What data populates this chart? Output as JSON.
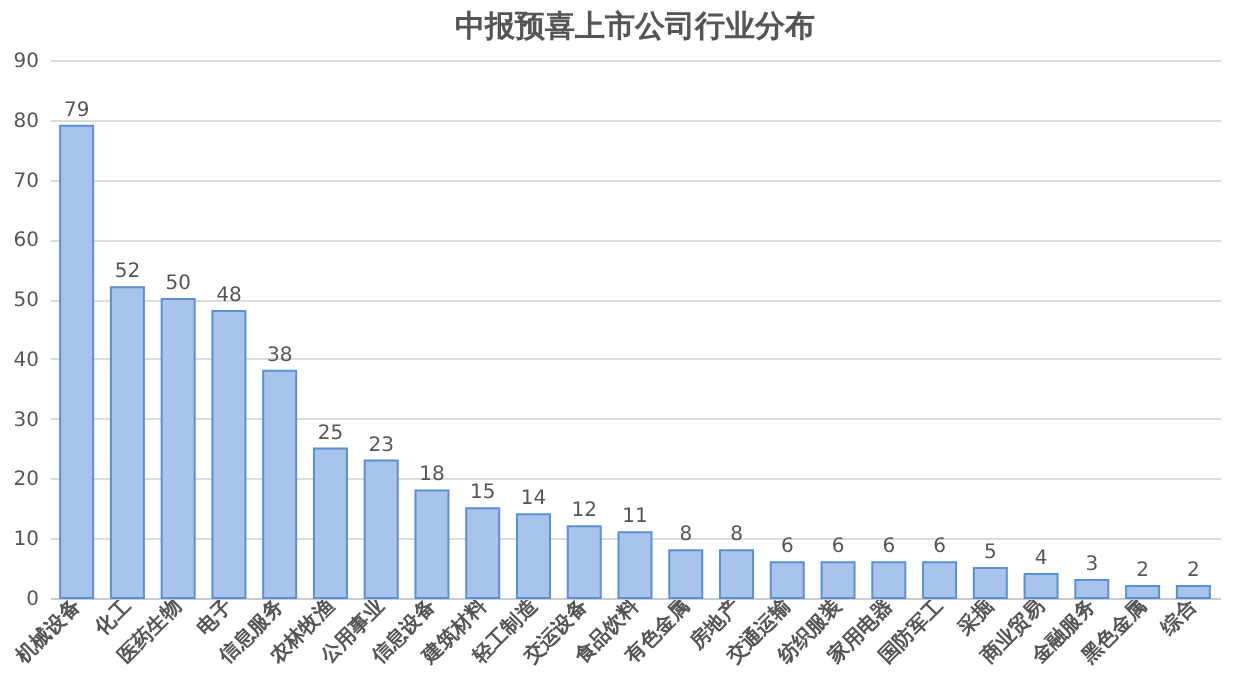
{
  "chart_data": {
    "type": "bar",
    "title": "中报预喜上市公司行业分布",
    "categories": [
      "机械设备",
      "化工",
      "医药生物",
      "电子",
      "信息服务",
      "农林牧渔",
      "公用事业",
      "信息设备",
      "建筑材料",
      "轻工制造",
      "交运设备",
      "食品饮料",
      "有色金属",
      "房地产",
      "交通运输",
      "纺织服装",
      "家用电器",
      "国防军工",
      "采掘",
      "商业贸易",
      "金融服务",
      "黑色金属",
      "综合"
    ],
    "values": [
      79,
      52,
      50,
      48,
      38,
      25,
      23,
      18,
      15,
      14,
      12,
      11,
      8,
      8,
      6,
      6,
      6,
      6,
      5,
      4,
      3,
      2,
      2
    ],
    "color": "#a8c4ec",
    "ylim": [
      0,
      90
    ],
    "yticks": [
      0,
      10,
      20,
      30,
      40,
      50,
      60,
      70,
      80,
      90
    ],
    "grid": "y",
    "data_labels": true
  }
}
